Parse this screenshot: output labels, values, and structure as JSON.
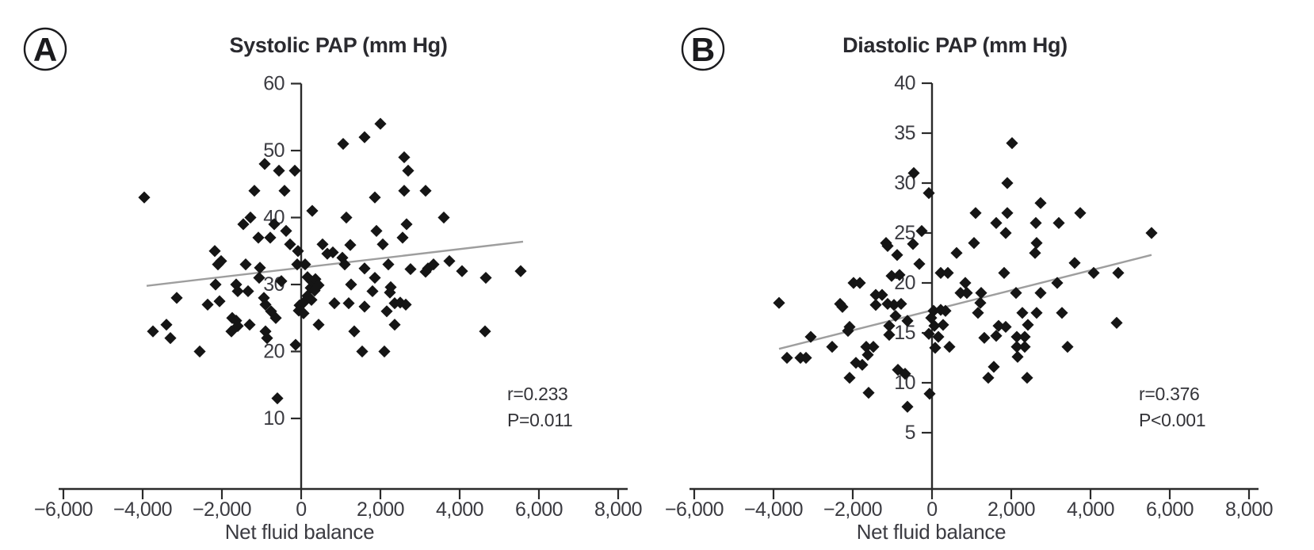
{
  "figure": {
    "background_color": "#ffffff",
    "colors": {
      "point": "#151515",
      "regression_line": "#9e9e9e",
      "axis": "#2a2a2a",
      "text": "#3b3b41"
    }
  },
  "chart_data": [
    {
      "type": "scatter",
      "panel_label": "A",
      "title": "Systolic PAP (mm Hg)",
      "xlabel": "Net fluid balance",
      "ylabel": "",
      "xlim": [
        -6000,
        8000
      ],
      "ylim": [
        0,
        60
      ],
      "grid": false,
      "marker": "diamond",
      "annotation_r": "r=0.233",
      "annotation_p": "P=0.011",
      "x_ticks": [
        -6000,
        -4000,
        -2000,
        0,
        2000,
        4000,
        6000,
        8000
      ],
      "x_tick_labels": [
        "−6,000",
        "−4,000",
        "−2,000",
        "0",
        "2,000",
        "4,000",
        "6,000",
        "8,000"
      ],
      "y_ticks": [
        10,
        20,
        30,
        40,
        50,
        60
      ],
      "regression_line": {
        "x1": -3900,
        "y1": 29.8,
        "x2": 5600,
        "y2": 36.4
      },
      "points": [
        [
          -3960,
          43
        ],
        [
          -3740,
          23
        ],
        [
          -3400,
          24
        ],
        [
          -3300,
          22
        ],
        [
          -3140,
          28
        ],
        [
          -2560,
          20
        ],
        [
          -2360,
          27
        ],
        [
          -2180,
          35
        ],
        [
          -2160,
          30
        ],
        [
          -2100,
          33
        ],
        [
          -2060,
          27.5
        ],
        [
          -2020,
          33.5
        ],
        [
          -1760,
          23
        ],
        [
          -1740,
          25
        ],
        [
          -1640,
          30
        ],
        [
          -1640,
          24.6
        ],
        [
          -1600,
          29
        ],
        [
          -1600,
          23.8
        ],
        [
          -1460,
          39
        ],
        [
          -1400,
          33
        ],
        [
          -1340,
          29
        ],
        [
          -1300,
          24
        ],
        [
          -1280,
          40
        ],
        [
          -1180,
          44
        ],
        [
          -1080,
          37
        ],
        [
          -1060,
          31
        ],
        [
          -1040,
          32.5
        ],
        [
          -940,
          28
        ],
        [
          -920,
          48
        ],
        [
          -900,
          27
        ],
        [
          -900,
          23
        ],
        [
          -860,
          22
        ],
        [
          -780,
          37
        ],
        [
          -760,
          26
        ],
        [
          -680,
          39
        ],
        [
          -640,
          25
        ],
        [
          -600,
          13
        ],
        [
          -560,
          47
        ],
        [
          -500,
          30.5
        ],
        [
          -420,
          44
        ],
        [
          -380,
          38
        ],
        [
          -280,
          36
        ],
        [
          -160,
          47
        ],
        [
          -140,
          21
        ],
        [
          -100,
          33
        ],
        [
          -80,
          35
        ],
        [
          -40,
          26.9
        ],
        [
          -60,
          26.1
        ],
        [
          60,
          27.3
        ],
        [
          60,
          25.7
        ],
        [
          100,
          33
        ],
        [
          160,
          31.1
        ],
        [
          160,
          28.3
        ],
        [
          240,
          29.5
        ],
        [
          260,
          30.5
        ],
        [
          260,
          27.7
        ],
        [
          280,
          41
        ],
        [
          340,
          29.1
        ],
        [
          360,
          30.8
        ],
        [
          440,
          29.9
        ],
        [
          440,
          24
        ],
        [
          540,
          36
        ],
        [
          660,
          34.6
        ],
        [
          800,
          34.8
        ],
        [
          840,
          27.2
        ],
        [
          1040,
          34
        ],
        [
          1060,
          51
        ],
        [
          1100,
          33
        ],
        [
          1140,
          40
        ],
        [
          1200,
          27.2
        ],
        [
          1240,
          35.9
        ],
        [
          1260,
          30
        ],
        [
          1340,
          23
        ],
        [
          1540,
          20
        ],
        [
          1600,
          52
        ],
        [
          1600,
          32.4
        ],
        [
          1600,
          26.7
        ],
        [
          1800,
          29
        ],
        [
          1860,
          43
        ],
        [
          1860,
          31
        ],
        [
          1900,
          38
        ],
        [
          2000,
          54
        ],
        [
          2060,
          36
        ],
        [
          2100,
          20
        ],
        [
          2160,
          26
        ],
        [
          2200,
          33
        ],
        [
          2240,
          28.8
        ],
        [
          2260,
          29.6
        ],
        [
          2360,
          27.2
        ],
        [
          2360,
          24
        ],
        [
          2500,
          27.3
        ],
        [
          2560,
          37
        ],
        [
          2600,
          49
        ],
        [
          2600,
          44
        ],
        [
          2640,
          27
        ],
        [
          2660,
          39
        ],
        [
          2700,
          47
        ],
        [
          2760,
          32.3
        ],
        [
          3140,
          44
        ],
        [
          3140,
          31.9
        ],
        [
          3200,
          32.4
        ],
        [
          3340,
          33
        ],
        [
          3600,
          40
        ],
        [
          3740,
          33.5
        ],
        [
          4060,
          32
        ],
        [
          4640,
          23
        ],
        [
          4660,
          31
        ],
        [
          5540,
          32
        ]
      ]
    },
    {
      "type": "scatter",
      "panel_label": "B",
      "title": "Diastolic PAP (mm Hg)",
      "xlabel": "Net fluid balance",
      "ylabel": "",
      "xlim": [
        -6000,
        8000
      ],
      "ylim": [
        0,
        40
      ],
      "grid": false,
      "marker": "diamond",
      "annotation_r": "r=0.376",
      "annotation_p": "P<0.001",
      "x_ticks": [
        -6000,
        -4000,
        -2000,
        0,
        2000,
        4000,
        6000,
        8000
      ],
      "x_tick_labels": [
        "−6,000",
        "−4,000",
        "−2,000",
        "0",
        "2,000",
        "4,000",
        "6,000",
        "8,000"
      ],
      "y_ticks": [
        5,
        10,
        15,
        20,
        25,
        30,
        35,
        40
      ],
      "regression_line": {
        "x1": -3860,
        "y1": 13.4,
        "x2": 5540,
        "y2": 22.8
      },
      "points": [
        [
          -3860,
          18
        ],
        [
          -3660,
          12.5
        ],
        [
          -3320,
          12.5
        ],
        [
          -3180,
          12.5
        ],
        [
          -3060,
          14.6
        ],
        [
          -2520,
          13.6
        ],
        [
          -2320,
          17.9
        ],
        [
          -2260,
          17.6
        ],
        [
          -2120,
          15.2
        ],
        [
          -2080,
          15.6
        ],
        [
          -2080,
          10.5
        ],
        [
          -1980,
          20
        ],
        [
          -1920,
          12
        ],
        [
          -1820,
          20
        ],
        [
          -1760,
          11.8
        ],
        [
          -1660,
          13.6
        ],
        [
          -1620,
          12.8
        ],
        [
          -1600,
          9
        ],
        [
          -1480,
          13.6
        ],
        [
          -1420,
          18.8
        ],
        [
          -1260,
          18.8
        ],
        [
          -1420,
          17.8
        ],
        [
          -1120,
          17.9
        ],
        [
          -960,
          17.8
        ],
        [
          -780,
          17.9
        ],
        [
          -1160,
          24
        ],
        [
          -1120,
          23.7
        ],
        [
          -1080,
          15.7
        ],
        [
          -1080,
          14.8
        ],
        [
          -1020,
          20.7
        ],
        [
          -920,
          16.7
        ],
        [
          -880,
          22.8
        ],
        [
          -860,
          11.3
        ],
        [
          -820,
          20.8
        ],
        [
          -680,
          10.9
        ],
        [
          -620,
          16.2
        ],
        [
          -620,
          7.6
        ],
        [
          -480,
          23.9
        ],
        [
          -460,
          31
        ],
        [
          -320,
          21.9
        ],
        [
          -260,
          25.2
        ],
        [
          -20,
          16.5
        ],
        [
          -80,
          29
        ],
        [
          -60,
          8.9
        ],
        [
          40,
          17.2
        ],
        [
          220,
          17.3
        ],
        [
          340,
          17.2
        ],
        [
          60,
          15.7
        ],
        [
          280,
          15.8
        ],
        [
          -80,
          14.9
        ],
        [
          160,
          14.6
        ],
        [
          80,
          13.5
        ],
        [
          440,
          13.6
        ],
        [
          220,
          21
        ],
        [
          400,
          21
        ],
        [
          620,
          23
        ],
        [
          720,
          19
        ],
        [
          840,
          20
        ],
        [
          880,
          19
        ],
        [
          1060,
          24
        ],
        [
          1100,
          27
        ],
        [
          1160,
          17
        ],
        [
          1220,
          18
        ],
        [
          1240,
          19
        ],
        [
          1320,
          14.5
        ],
        [
          1420,
          10.5
        ],
        [
          1560,
          11.6
        ],
        [
          1620,
          26
        ],
        [
          1620,
          14.7
        ],
        [
          1680,
          15.7
        ],
        [
          1820,
          21
        ],
        [
          1860,
          25
        ],
        [
          1860,
          15.6
        ],
        [
          1900,
          30
        ],
        [
          1900,
          27
        ],
        [
          2020,
          34
        ],
        [
          2120,
          19
        ],
        [
          2140,
          14.6
        ],
        [
          2140,
          13.6
        ],
        [
          2160,
          12.6
        ],
        [
          2280,
          17
        ],
        [
          2340,
          14.6
        ],
        [
          2340,
          13.6
        ],
        [
          2400,
          10.5
        ],
        [
          2420,
          15.8
        ],
        [
          2620,
          26
        ],
        [
          2600,
          23
        ],
        [
          2640,
          24
        ],
        [
          2640,
          17
        ],
        [
          2740,
          28
        ],
        [
          2740,
          19
        ],
        [
          3160,
          20
        ],
        [
          3200,
          26
        ],
        [
          3280,
          17
        ],
        [
          3420,
          13.6
        ],
        [
          3600,
          22
        ],
        [
          3740,
          27
        ],
        [
          4080,
          21
        ],
        [
          4660,
          16
        ],
        [
          4700,
          21
        ],
        [
          5540,
          25
        ]
      ]
    }
  ]
}
